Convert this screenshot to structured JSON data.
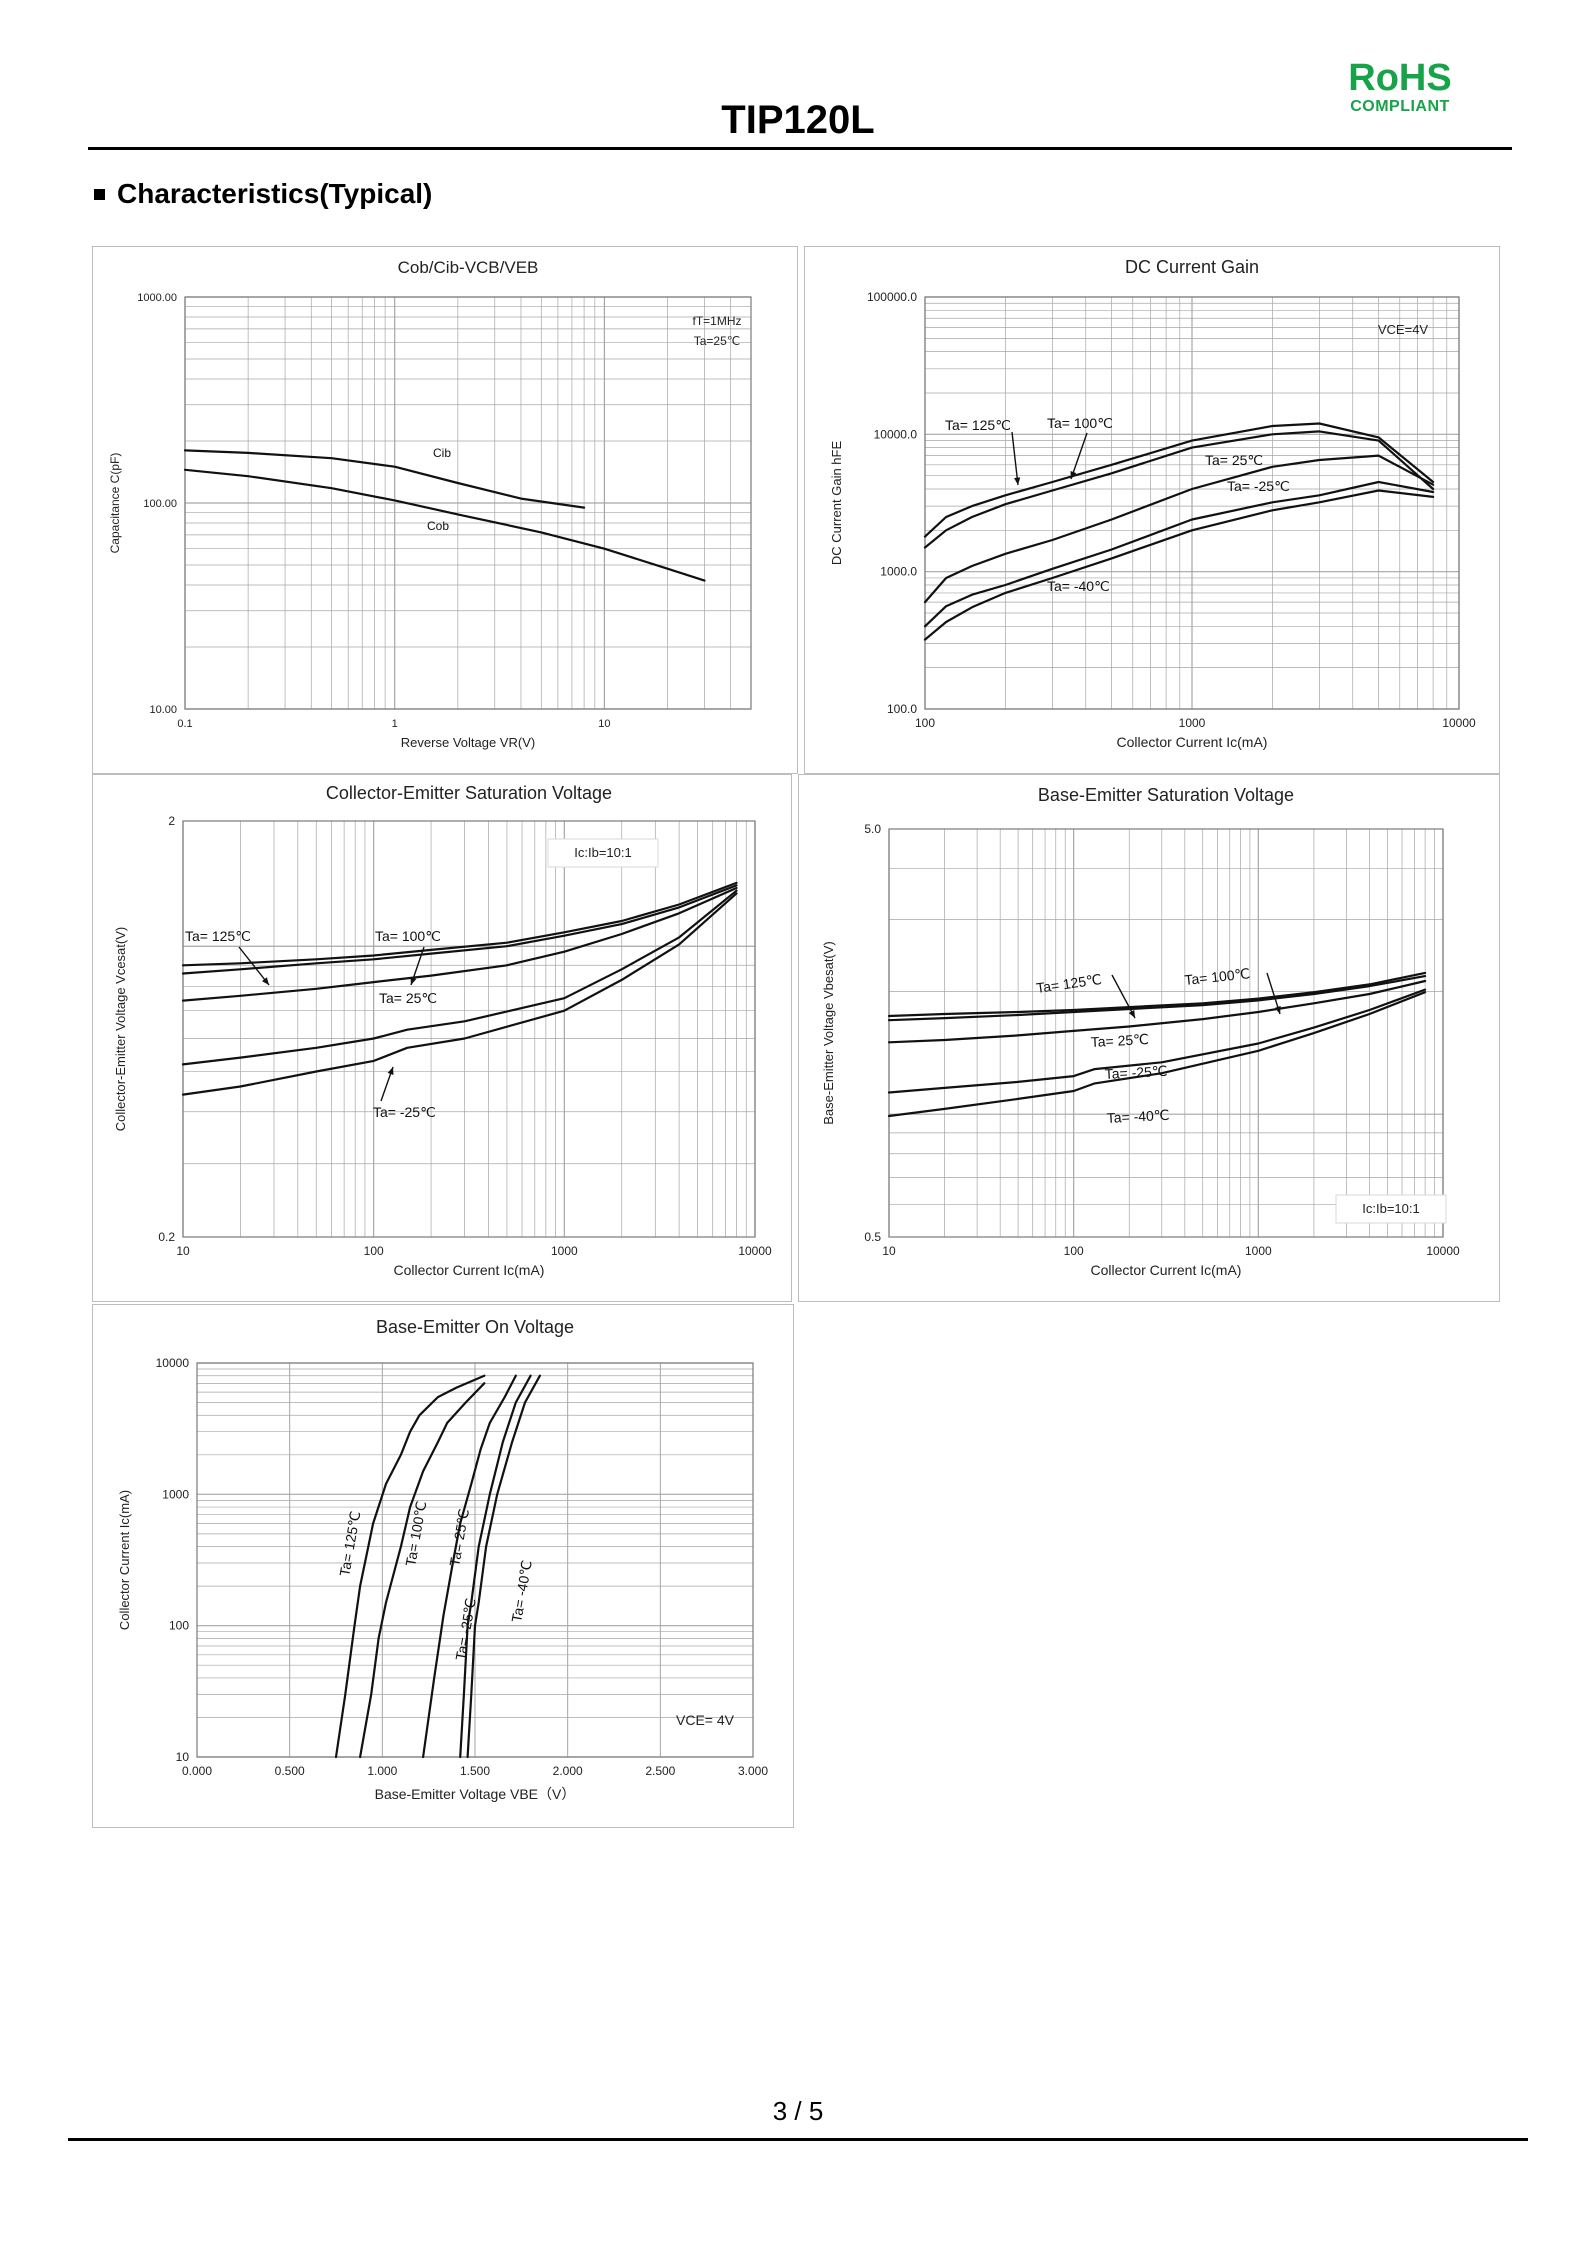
{
  "header": {
    "title": "TIP120L",
    "rohs": "RoHS",
    "compliant": "COMPLIANT"
  },
  "section": {
    "title": "Characteristics(Typical)"
  },
  "footer": {
    "page": "3 / 5"
  },
  "chart_data": [
    {
      "id": "c1",
      "type": "line",
      "title": "Cob/Cib-VCB/VEB",
      "xlabel": "Reverse Voltage VR(V)",
      "ylabel": "Capacitance C(pF)",
      "xscale": "log",
      "yscale": "log",
      "xlim": [
        0.1,
        50
      ],
      "ylim": [
        10,
        1000
      ],
      "xticks": [
        0.1,
        1,
        10
      ],
      "xticklabels": [
        "0.1",
        "1",
        "10"
      ],
      "yticks": [
        10,
        100,
        1000
      ],
      "yticklabels": [
        "10.00",
        "100.00",
        "1000.00"
      ],
      "annotation": [
        "fT=1MHz",
        "Ta=25℃"
      ],
      "grid": true,
      "series": [
        {
          "name": "Cib",
          "x": [
            0.1,
            0.2,
            0.5,
            1,
            2,
            4,
            8
          ],
          "y": [
            180,
            175,
            165,
            150,
            125,
            105,
            95
          ]
        },
        {
          "name": "Cob",
          "x": [
            0.1,
            0.2,
            0.5,
            1,
            2,
            5,
            10,
            20,
            30
          ],
          "y": [
            145,
            135,
            118,
            103,
            88,
            72,
            60,
            48,
            42
          ]
        }
      ]
    },
    {
      "id": "c2",
      "type": "line",
      "title": "DC Current Gain",
      "xlabel": "Collector Current Ic(mA)",
      "ylabel": "DC Current Gain hFE",
      "xscale": "log",
      "yscale": "log",
      "xlim": [
        100,
        10000
      ],
      "ylim": [
        100,
        100000
      ],
      "xticks": [
        100,
        1000,
        10000
      ],
      "xticklabels": [
        "100",
        "1000",
        "10000"
      ],
      "yticks": [
        100,
        1000,
        10000,
        100000
      ],
      "yticklabels": [
        "100.0",
        "1000.0",
        "10000.0",
        "100000.0"
      ],
      "annotation": [
        "VCE=4V"
      ],
      "grid": true,
      "series": [
        {
          "name": "Ta= 125℃",
          "x": [
            100,
            120,
            150,
            200,
            300,
            500,
            1000,
            2000,
            3000,
            5000,
            8000
          ],
          "y": [
            1800,
            2500,
            3000,
            3600,
            4500,
            6000,
            9000,
            11500,
            12000,
            9500,
            4500
          ]
        },
        {
          "name": "Ta= 100℃",
          "x": [
            100,
            120,
            150,
            200,
            300,
            500,
            1000,
            2000,
            3000,
            5000,
            8000
          ],
          "y": [
            1500,
            2000,
            2500,
            3100,
            3900,
            5200,
            8000,
            10000,
            10500,
            9000,
            4000
          ]
        },
        {
          "name": "Ta= 25℃",
          "x": [
            100,
            120,
            150,
            200,
            300,
            500,
            1000,
            2000,
            3000,
            5000,
            8000
          ],
          "y": [
            600,
            900,
            1100,
            1350,
            1700,
            2400,
            4000,
            5800,
            6500,
            7000,
            4300
          ]
        },
        {
          "name": "Ta= -25℃",
          "x": [
            100,
            120,
            150,
            200,
            300,
            500,
            1000,
            2000,
            3000,
            5000,
            8000
          ],
          "y": [
            400,
            560,
            680,
            800,
            1050,
            1450,
            2400,
            3200,
            3600,
            4500,
            3800
          ]
        },
        {
          "name": "Ta= -40℃",
          "x": [
            100,
            120,
            150,
            200,
            300,
            500,
            1000,
            2000,
            3000,
            5000,
            8000
          ],
          "y": [
            320,
            430,
            550,
            700,
            900,
            1250,
            2000,
            2800,
            3200,
            3900,
            3500
          ]
        }
      ]
    },
    {
      "id": "c3",
      "type": "line",
      "title": "Collector-Emitter Saturation Voltage",
      "xlabel": "Collector Current Ic(mA)",
      "ylabel": "Collector-Emitter Voltage Vcesat(V)",
      "xscale": "log",
      "yscale": "log",
      "xlim": [
        10,
        10000
      ],
      "ylim": [
        0.2,
        2
      ],
      "xticks": [
        10,
        100,
        1000,
        10000
      ],
      "xticklabels": [
        "10",
        "100",
        "1000",
        "10000"
      ],
      "yticks": [
        0.2,
        2
      ],
      "yticklabels": [
        "0.2",
        "2"
      ],
      "annotation": [
        "Ic:Ib=10:1"
      ],
      "grid": true,
      "series": [
        {
          "name": "Ta= 125℃",
          "x": [
            10,
            20,
            50,
            100,
            200,
            500,
            1000,
            2000,
            4000,
            8000
          ],
          "y": [
            0.9,
            0.91,
            0.93,
            0.95,
            0.98,
            1.02,
            1.08,
            1.15,
            1.26,
            1.42
          ]
        },
        {
          "name": "Ta= 100℃",
          "x": [
            10,
            20,
            50,
            100,
            200,
            500,
            1000,
            2000,
            4000,
            8000
          ],
          "y": [
            0.86,
            0.88,
            0.91,
            0.93,
            0.96,
            1.0,
            1.06,
            1.13,
            1.24,
            1.4
          ]
        },
        {
          "name": "Ta= 25℃",
          "x": [
            10,
            20,
            50,
            100,
            200,
            500,
            1000,
            2000,
            4000,
            8000
          ],
          "y": [
            0.74,
            0.76,
            0.79,
            0.82,
            0.85,
            0.9,
            0.97,
            1.07,
            1.2,
            1.38
          ]
        },
        {
          "name": "Ta= -25℃",
          "x": [
            10,
            20,
            50,
            100,
            150,
            300,
            1000,
            2000,
            4000,
            8000
          ],
          "y": [
            0.52,
            0.54,
            0.57,
            0.6,
            0.63,
            0.66,
            0.75,
            0.88,
            1.05,
            1.36
          ]
        },
        {
          "name": "",
          "x": [
            10,
            20,
            50,
            100,
            150,
            300,
            1000,
            2000,
            4000,
            8000
          ],
          "y": [
            0.44,
            0.46,
            0.5,
            0.53,
            0.57,
            0.6,
            0.7,
            0.83,
            1.01,
            1.34
          ]
        }
      ]
    },
    {
      "id": "c4",
      "type": "line",
      "title": "Base-Emitter Saturation Voltage",
      "xlabel": "Collector Current Ic(mA)",
      "ylabel": "Base-Emitter Voltage Vbesat(V)",
      "xscale": "log",
      "yscale": "log",
      "xlim": [
        10,
        10000
      ],
      "ylim": [
        0.5,
        5
      ],
      "xticks": [
        10,
        100,
        1000,
        10000
      ],
      "xticklabels": [
        "10",
        "100",
        "1000",
        "10000"
      ],
      "yticks": [
        0.5,
        5
      ],
      "yticklabels": [
        "0.5",
        "5.0"
      ],
      "annotation": [
        "Ic:Ib=10:1"
      ],
      "grid": true,
      "series": [
        {
          "name": "Ta= 125℃",
          "x": [
            10,
            20,
            50,
            100,
            200,
            500,
            1000,
            2000,
            4000,
            8000
          ],
          "y": [
            1.74,
            1.76,
            1.78,
            1.8,
            1.83,
            1.87,
            1.92,
            1.99,
            2.08,
            2.22
          ]
        },
        {
          "name": "Ta= 100℃",
          "x": [
            10,
            20,
            50,
            100,
            200,
            500,
            1000,
            2000,
            4000,
            8000
          ],
          "y": [
            1.7,
            1.72,
            1.75,
            1.78,
            1.81,
            1.85,
            1.9,
            1.97,
            2.06,
            2.18
          ]
        },
        {
          "name": "Ta= 25℃",
          "x": [
            10,
            20,
            50,
            100,
            200,
            500,
            1000,
            2000,
            4000,
            8000
          ],
          "y": [
            1.5,
            1.52,
            1.56,
            1.6,
            1.64,
            1.71,
            1.78,
            1.87,
            1.97,
            2.12
          ]
        },
        {
          "name": "Ta= -25℃",
          "x": [
            10,
            20,
            50,
            100,
            130,
            300,
            1000,
            2000,
            4000,
            8000
          ],
          "y": [
            1.13,
            1.16,
            1.2,
            1.24,
            1.29,
            1.34,
            1.49,
            1.63,
            1.8,
            2.02
          ]
        },
        {
          "name": "Ta= -40℃",
          "x": [
            10,
            20,
            50,
            100,
            130,
            300,
            1000,
            2000,
            4000,
            8000
          ],
          "y": [
            0.99,
            1.03,
            1.09,
            1.14,
            1.19,
            1.26,
            1.43,
            1.58,
            1.76,
            1.99
          ]
        }
      ]
    },
    {
      "id": "c5",
      "type": "line",
      "title": "Base-Emitter On Voltage",
      "xlabel": "Base-Emitter Voltage VBE（V）",
      "ylabel": "Collector Current Ic(mA)",
      "xscale": "linear",
      "yscale": "log",
      "xlim": [
        0,
        3
      ],
      "ylim": [
        10,
        10000
      ],
      "xticks": [
        0,
        0.5,
        1,
        1.5,
        2,
        2.5,
        3
      ],
      "xticklabels": [
        "0.000",
        "0.500",
        "1.000",
        "1.500",
        "2.000",
        "2.500",
        "3.000"
      ],
      "yticks": [
        10,
        100,
        1000,
        10000
      ],
      "yticklabels": [
        "10",
        "100",
        "1000",
        "10000"
      ],
      "annotation": [
        "VCE= 4V"
      ],
      "grid": true,
      "series": [
        {
          "name": "Ta= 125℃",
          "x": [
            0.75,
            0.8,
            0.85,
            0.88,
            0.95,
            1.02,
            1.1,
            1.15,
            1.2,
            1.3,
            1.4,
            1.55
          ],
          "y": [
            10,
            30,
            100,
            200,
            600,
            1200,
            2000,
            3000,
            4000,
            5500,
            6500,
            8000
          ]
        },
        {
          "name": "Ta= 100℃",
          "x": [
            0.88,
            0.94,
            0.98,
            1.02,
            1.1,
            1.15,
            1.22,
            1.3,
            1.35,
            1.45,
            1.55
          ],
          "y": [
            10,
            30,
            80,
            150,
            400,
            800,
            1500,
            2500,
            3500,
            5000,
            7000
          ]
        },
        {
          "name": "Ta= 25℃",
          "x": [
            1.22,
            1.28,
            1.33,
            1.38,
            1.42,
            1.48,
            1.53,
            1.58,
            1.66,
            1.72
          ],
          "y": [
            10,
            40,
            120,
            300,
            600,
            1200,
            2200,
            3500,
            5500,
            8000
          ]
        },
        {
          "name": "Ta= -25℃",
          "x": [
            1.42,
            1.44,
            1.46,
            1.48,
            1.52,
            1.58,
            1.65,
            1.72,
            1.8
          ],
          "y": [
            10,
            30,
            100,
            150,
            400,
            1000,
            2500,
            5000,
            8000
          ]
        },
        {
          "name": "Ta= -40℃",
          "x": [
            1.46,
            1.48,
            1.5,
            1.52,
            1.56,
            1.62,
            1.7,
            1.77,
            1.85
          ],
          "y": [
            10,
            30,
            100,
            150,
            400,
            1000,
            2500,
            5000,
            8000
          ]
        }
      ]
    }
  ]
}
